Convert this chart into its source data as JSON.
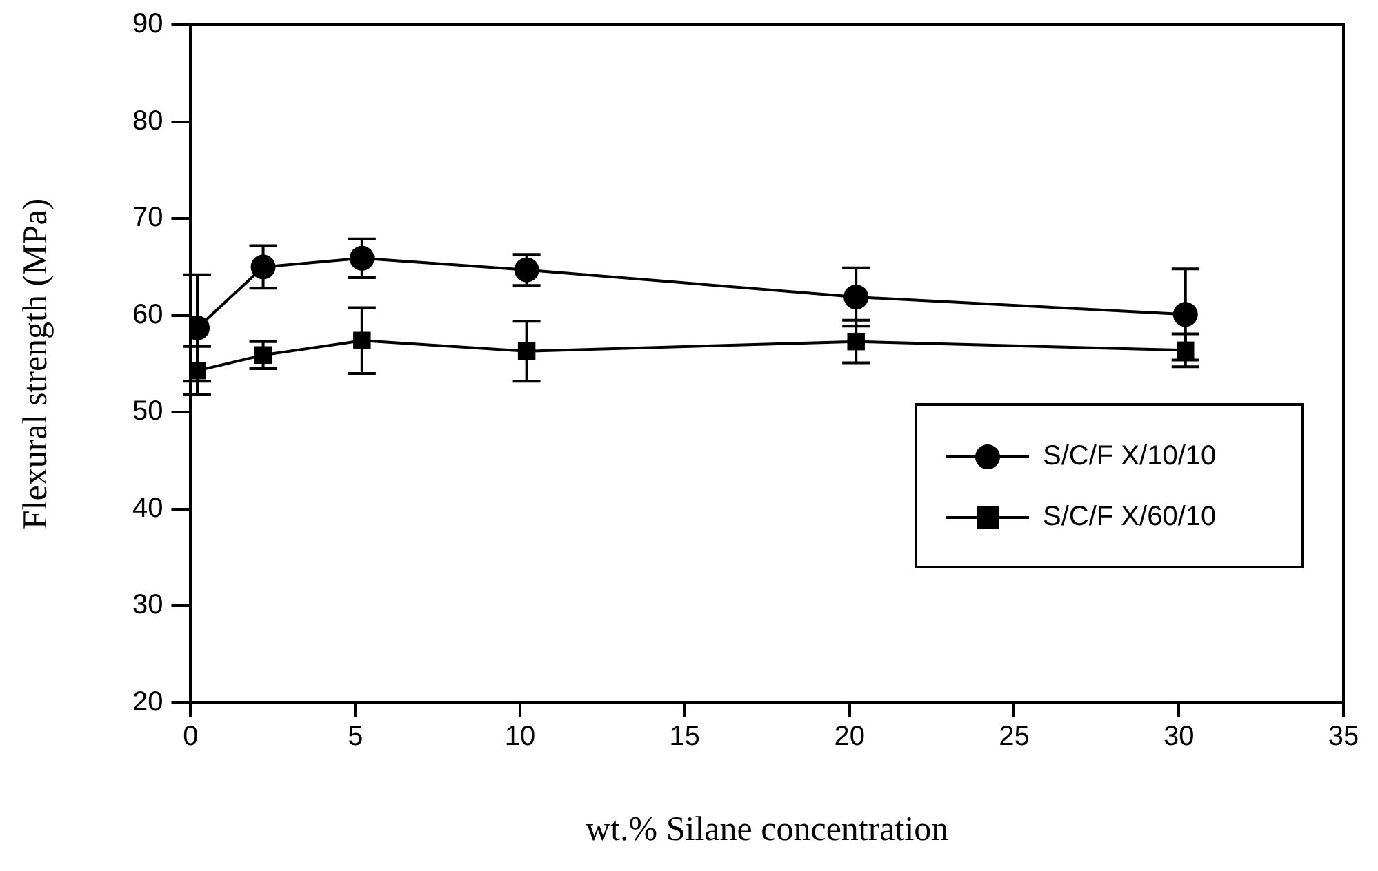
{
  "chart_data": {
    "type": "line",
    "xlabel": "wt.% Silane concentration",
    "ylabel": "Flexural strength (MPa)",
    "xlim": [
      0,
      35
    ],
    "xticks": [
      0,
      5,
      10,
      15,
      20,
      25,
      30,
      35
    ],
    "ylim": [
      20,
      90
    ],
    "yticks": [
      20,
      30,
      40,
      50,
      60,
      70,
      80,
      90
    ],
    "grid": false,
    "legend": "right",
    "line_style": "solid",
    "series": [
      {
        "name": "S/C/F X/10/10",
        "color": "#000000",
        "marker": "circle",
        "x": [
          0.2,
          2.2,
          5.2,
          10.2,
          20.2,
          30.2
        ],
        "values": [
          58.7,
          65.0,
          65.9,
          64.7,
          61.9,
          60.1
        ],
        "errors": [
          5.5,
          2.2,
          2.0,
          1.6,
          3.0,
          4.7
        ]
      },
      {
        "name": "S/C/F X/60/10",
        "color": "#000000",
        "marker": "square",
        "x": [
          0.2,
          2.2,
          5.2,
          10.2,
          20.2,
          30.2
        ],
        "values": [
          54.3,
          55.9,
          57.4,
          56.3,
          57.3,
          56.4
        ],
        "errors": [
          2.5,
          1.4,
          3.4,
          3.1,
          2.2,
          1.7
        ]
      }
    ]
  }
}
